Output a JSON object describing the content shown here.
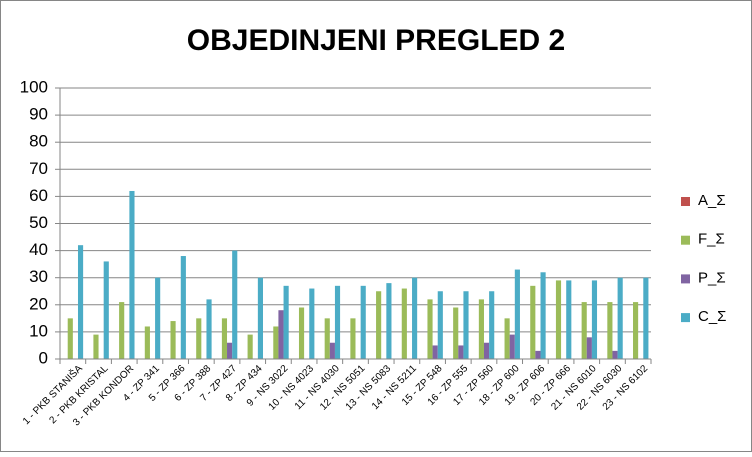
{
  "chart_data": {
    "type": "bar",
    "title": "OBJEDINJENI PREGLED 2",
    "categories": [
      "1 - PKB STANIŠA",
      "2 - PKB KRISTAL",
      "3 - PKB KONDOR",
      "4 - ZP 341",
      "5 - ZP 366",
      "6 - ZP 388",
      "7 - ZP 427",
      "8 - ZP 434",
      "9 - NS 3022",
      "10 - NS 4023",
      "11 - NS 4030",
      "12 - NS 5051",
      "13 - NS 5083",
      "14 - NS 5211",
      "15 - ZP 548",
      "16 - ZP 555",
      "17 - ZP 560",
      "18 - ZP 600",
      "19 - ZP 606",
      "20 - ZP 666",
      "21 - NS 6010",
      "22 - NS 6030",
      "23 - NS 6102"
    ],
    "series": [
      {
        "name": "A_Σ",
        "color": "#c0504d",
        "values": [
          0,
          0,
          0,
          0,
          0,
          0,
          0,
          0,
          0,
          0,
          0,
          0,
          0,
          0,
          0,
          0,
          0,
          0,
          0,
          0,
          0,
          0,
          0
        ]
      },
      {
        "name": "F_Σ",
        "color": "#9bbb59",
        "values": [
          15,
          9,
          21,
          12,
          14,
          15,
          15,
          9,
          12,
          19,
          15,
          15,
          25,
          26,
          22,
          19,
          22,
          15,
          27,
          29,
          21,
          21,
          21
        ]
      },
      {
        "name": "P_Σ",
        "color": "#8064a2",
        "values": [
          0,
          0,
          0,
          0,
          0,
          0,
          6,
          0,
          18,
          0,
          6,
          0,
          0,
          0,
          5,
          5,
          6,
          9,
          3,
          0,
          8,
          3,
          0
        ]
      },
      {
        "name": "C_Σ",
        "color": "#4bacc6",
        "values": [
          42,
          36,
          62,
          30,
          38,
          22,
          40,
          30,
          27,
          26,
          27,
          27,
          28,
          30,
          25,
          25,
          25,
          33,
          32,
          29,
          29,
          30,
          30
        ]
      }
    ],
    "ylim": [
      0,
      100
    ],
    "yticks": [
      0,
      10,
      20,
      30,
      40,
      50,
      60,
      70,
      80,
      90,
      100
    ],
    "grid": true,
    "legend": "right"
  }
}
